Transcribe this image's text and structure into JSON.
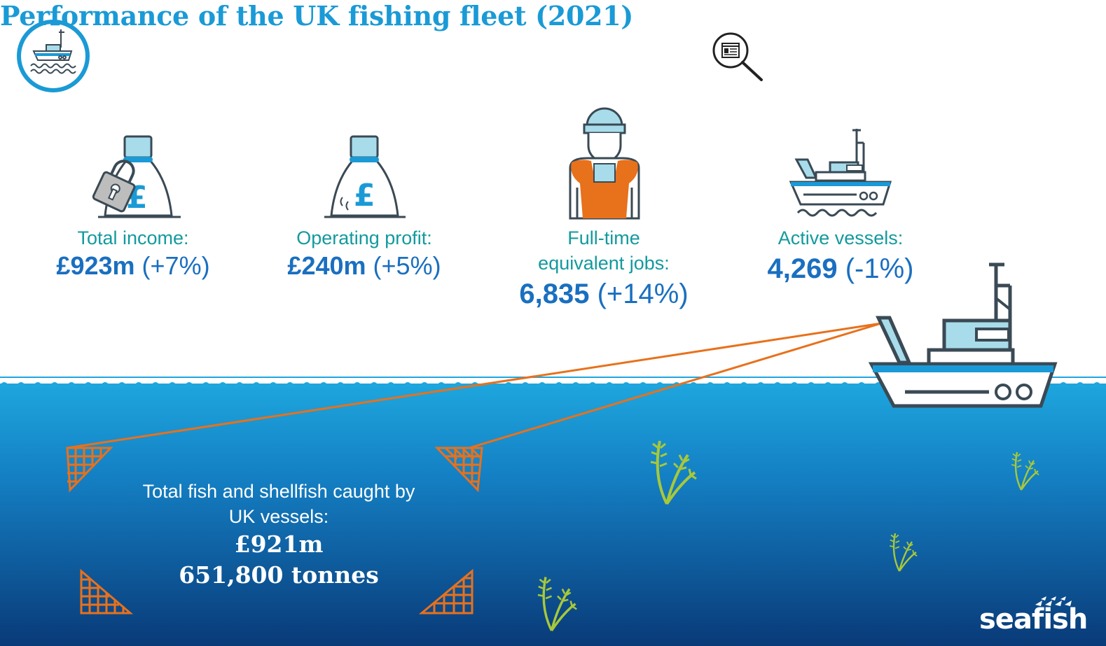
{
  "header": {
    "title": "Performance of the UK fishing fleet (2021)"
  },
  "metrics": [
    {
      "label": "Total income:",
      "value": "£923m",
      "change": "(+7%)",
      "icon": "money-bag-padlock-icon"
    },
    {
      "label": "Operating profit:",
      "value": "£240m",
      "change": "(+5%)",
      "icon": "money-bag-icon"
    },
    {
      "label_line1": "Full-time",
      "label_line2": "equivalent jobs:",
      "value": "6,835",
      "change": "(+14%)",
      "icon": "fisherman-icon"
    },
    {
      "label": "Active vessels:",
      "value": "4,269",
      "change": "(-1%)",
      "icon": "fishing-vessel-icon"
    }
  ],
  "catch": {
    "label_line1": "Total fish and shellfish caught by",
    "label_line2": "UK vessels:",
    "value": "£921m",
    "tonnes": "651,800 tonnes"
  },
  "brand": {
    "name": "seafish"
  },
  "colors": {
    "title_blue": "#1a9ad6",
    "label_teal": "#139a9e",
    "value_blue": "#1a6fc0",
    "sea_top": "#1b9fd9",
    "sea_bottom": "#0a3d7a",
    "net_orange": "#e8711c",
    "seaweed_green": "#a8c83a"
  }
}
